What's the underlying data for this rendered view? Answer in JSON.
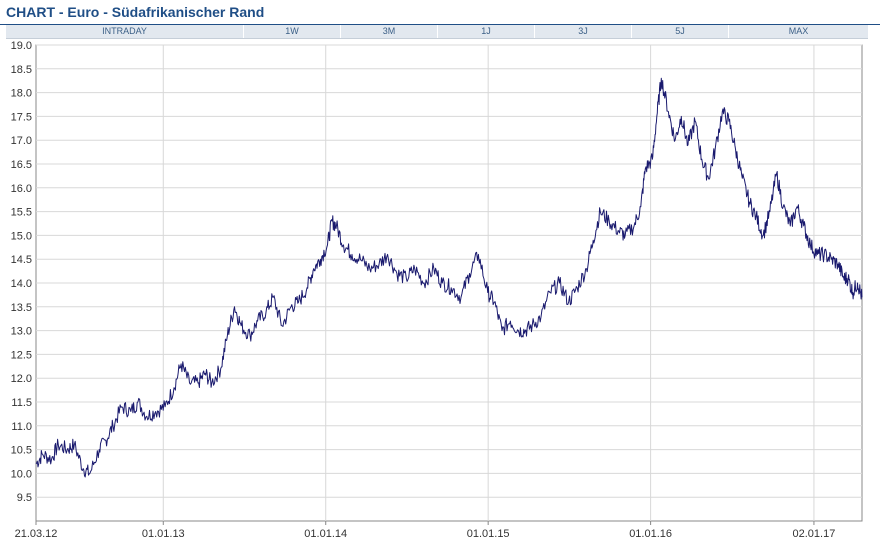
{
  "header": {
    "title": "CHART - Euro - Südafrikanischer Rand"
  },
  "tabs": [
    {
      "label": "INTRADAY"
    },
    {
      "label": "1W"
    },
    {
      "label": "3M"
    },
    {
      "label": "1J"
    },
    {
      "label": "3J"
    },
    {
      "label": "5J"
    },
    {
      "label": "MAX"
    }
  ],
  "colors": {
    "accent": "#1f4e86",
    "line": "#1a1a6e",
    "grid": "#d8d8d8",
    "tab_bg": "#e2e8ef"
  },
  "chart_data": {
    "type": "line",
    "title": "",
    "xlabel": "",
    "ylabel": "",
    "ylim": [
      9.0,
      19.0
    ],
    "yticks": [
      "9.5",
      "10.0",
      "10.5",
      "11.0",
      "11.5",
      "12.0",
      "12.5",
      "13.0",
      "13.5",
      "14.0",
      "14.5",
      "15.0",
      "15.5",
      "16.0",
      "16.5",
      "17.0",
      "17.5",
      "18.0",
      "18.5",
      "19.0"
    ],
    "xlim": [
      "2012-03-21",
      "2017-04-20"
    ],
    "xticks": [
      {
        "label": "21.03.12",
        "date": "2012-03-21"
      },
      {
        "label": "01.01.13",
        "date": "2013-01-01"
      },
      {
        "label": "01.01.14",
        "date": "2014-01-01"
      },
      {
        "label": "01.01.15",
        "date": "2015-01-01"
      },
      {
        "label": "01.01.16",
        "date": "2016-01-01"
      },
      {
        "label": "02.01.17",
        "date": "2017-01-02"
      }
    ],
    "grid": true,
    "series": [
      {
        "x": [
          "2012-03-21",
          "2012-04-05",
          "2012-04-25",
          "2012-05-10",
          "2012-05-30",
          "2012-06-15",
          "2012-07-05",
          "2012-07-20",
          "2012-08-10",
          "2012-08-25",
          "2012-09-10",
          "2012-09-30",
          "2012-10-20",
          "2012-11-05",
          "2012-11-25",
          "2012-12-15",
          "2013-01-05",
          "2013-01-25",
          "2013-02-10",
          "2013-03-01",
          "2013-03-20",
          "2013-04-05",
          "2013-04-20",
          "2013-05-10",
          "2013-05-25",
          "2013-06-10",
          "2013-06-25",
          "2013-07-15",
          "2013-08-01",
          "2013-08-20",
          "2013-09-05",
          "2013-09-25",
          "2013-10-15",
          "2013-11-01",
          "2013-11-20",
          "2013-12-05",
          "2013-12-20",
          "2014-01-05",
          "2014-01-15",
          "2014-01-25",
          "2014-02-10",
          "2014-03-01",
          "2014-03-20",
          "2014-04-10",
          "2014-05-01",
          "2014-05-20",
          "2014-06-10",
          "2014-07-01",
          "2014-07-20",
          "2014-08-10",
          "2014-09-01",
          "2014-09-20",
          "2014-10-10",
          "2014-11-01",
          "2014-11-20",
          "2014-12-10",
          "2014-12-31",
          "2015-01-15",
          "2015-02-01",
          "2015-02-20",
          "2015-03-10",
          "2015-03-25",
          "2015-04-10",
          "2015-04-30",
          "2015-05-20",
          "2015-06-10",
          "2015-07-01",
          "2015-07-20",
          "2015-08-10",
          "2015-08-25",
          "2015-09-10",
          "2015-09-30",
          "2015-10-20",
          "2015-11-05",
          "2015-11-25",
          "2015-12-10",
          "2015-12-20",
          "2016-01-05",
          "2016-01-15",
          "2016-01-25",
          "2016-02-10",
          "2016-02-25",
          "2016-03-10",
          "2016-03-25",
          "2016-04-10",
          "2016-04-25",
          "2016-05-10",
          "2016-05-25",
          "2016-06-10",
          "2016-06-25",
          "2016-07-10",
          "2016-07-25",
          "2016-08-10",
          "2016-08-25",
          "2016-09-10",
          "2016-09-25",
          "2016-10-10",
          "2016-10-25",
          "2016-11-10",
          "2016-11-25",
          "2016-12-10",
          "2016-12-25",
          "2017-01-10",
          "2017-01-25",
          "2017-02-10",
          "2017-02-25",
          "2017-03-10",
          "2017-03-20",
          "2017-03-30",
          "2017-04-10",
          "2017-04-20"
        ],
        "values": [
          10.2,
          10.4,
          10.3,
          10.6,
          10.5,
          10.6,
          10.1,
          10.0,
          10.5,
          10.7,
          11.0,
          11.4,
          11.3,
          11.5,
          11.2,
          11.3,
          11.4,
          11.8,
          12.3,
          11.9,
          11.9,
          12.1,
          11.9,
          12.2,
          12.9,
          13.5,
          13.1,
          12.9,
          13.2,
          13.4,
          13.7,
          13.1,
          13.5,
          13.6,
          13.9,
          14.3,
          14.5,
          14.8,
          15.3,
          15.2,
          14.8,
          14.6,
          14.5,
          14.3,
          14.4,
          14.6,
          14.2,
          14.1,
          14.3,
          14.0,
          14.3,
          14.0,
          13.9,
          13.7,
          14.2,
          14.6,
          13.8,
          13.6,
          13.0,
          13.2,
          13.0,
          13.0,
          13.1,
          13.3,
          13.8,
          14.0,
          13.6,
          13.9,
          14.3,
          14.9,
          15.5,
          15.3,
          15.1,
          15.0,
          15.2,
          15.6,
          16.4,
          16.6,
          17.5,
          18.3,
          17.6,
          17.0,
          17.5,
          16.9,
          17.4,
          16.6,
          16.2,
          16.8,
          17.6,
          17.4,
          16.8,
          16.2,
          15.7,
          15.4,
          15.0,
          15.5,
          16.3,
          15.6,
          15.2,
          15.6,
          15.2,
          14.8,
          14.6,
          14.6,
          14.5,
          14.4,
          14.1,
          14.1,
          13.8,
          14.0,
          13.7
        ]
      }
    ]
  }
}
